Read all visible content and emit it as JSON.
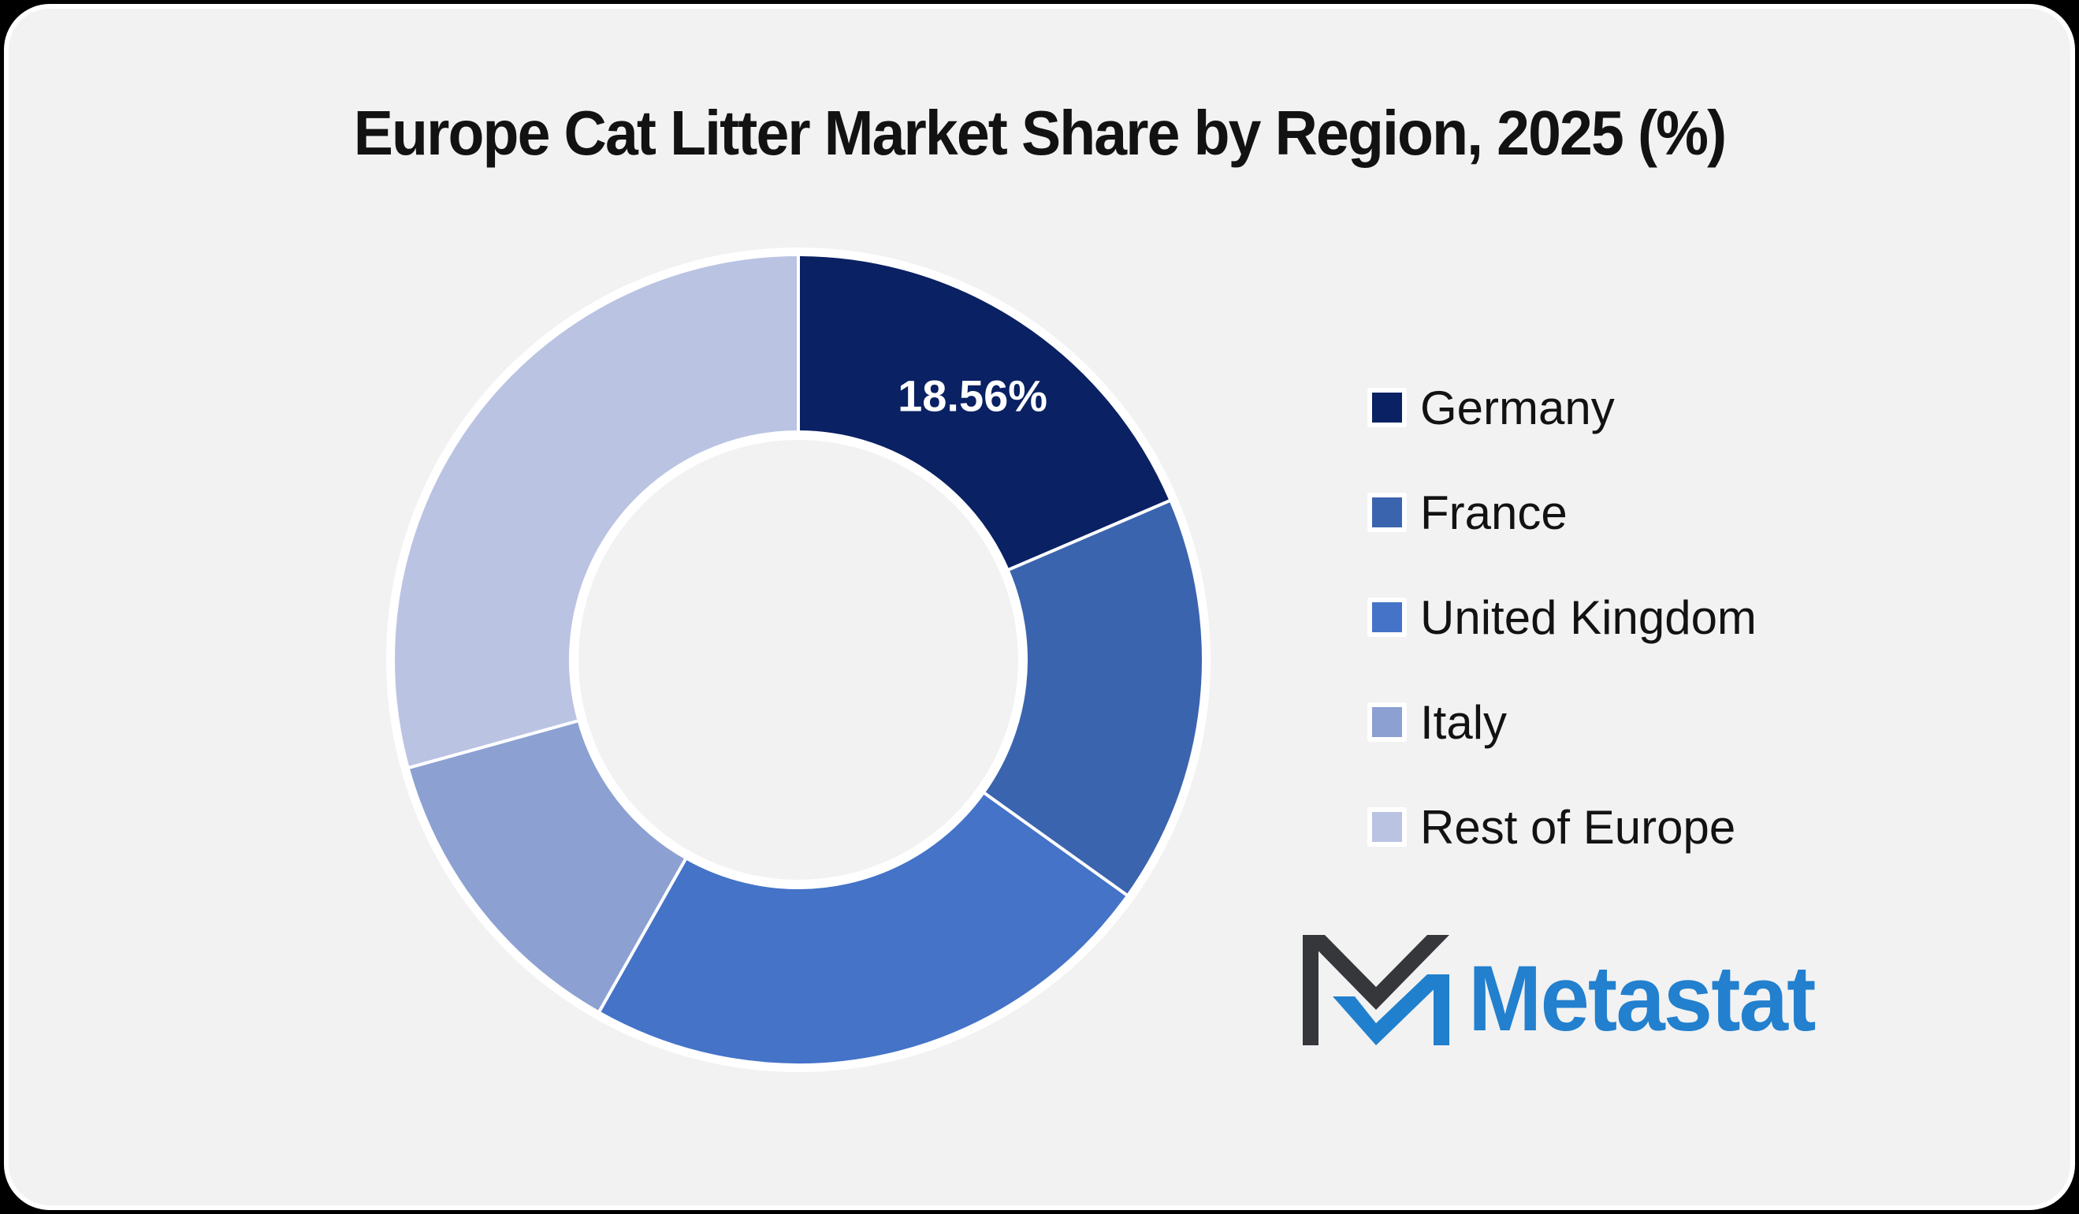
{
  "page": {
    "outer_background": "#000000",
    "card_background": "#F2F2F2",
    "card_border_color": "#FFFFFF"
  },
  "title": "Europe Cat Litter Market Share by Region, 2025 (%)",
  "chart_data": {
    "type": "pie",
    "subtype": "donut",
    "title": "Europe Cat Litter Market Share by Region, 2025 (%)",
    "unit": "%",
    "direction": "clockwise",
    "start_angle_deg": 0,
    "inner_radius_ratio": 0.56,
    "grid": false,
    "legend_position": "right",
    "categories": [
      "Germany",
      "France",
      "United Kingdom",
      "Italy",
      "Rest of Europe"
    ],
    "values": [
      18.56,
      16.33,
      23.31,
      12.5,
      29.3
    ],
    "colors": [
      "#0A2163",
      "#3B64AE",
      "#4473C8",
      "#8CA0D2",
      "#BAC3E2"
    ],
    "slice_stroke_color": "#FFFFFF",
    "data_label": {
      "slice": "Germany",
      "text": "18.56%",
      "color": "#FFFFFF"
    }
  },
  "legend": {
    "items": [
      {
        "label": "Germany",
        "color": "#0A2163"
      },
      {
        "label": "France",
        "color": "#3B64AE"
      },
      {
        "label": "United Kingdom",
        "color": "#4473C8"
      },
      {
        "label": "Italy",
        "color": "#8CA0D2"
      },
      {
        "label": "Rest of Europe",
        "color": "#BAC3E2"
      }
    ]
  },
  "logo": {
    "wordmark": "Metastat",
    "wordmark_color": "#2280CE",
    "icon_dark_color": "#35373A",
    "icon_blue_color": "#2080CE"
  }
}
